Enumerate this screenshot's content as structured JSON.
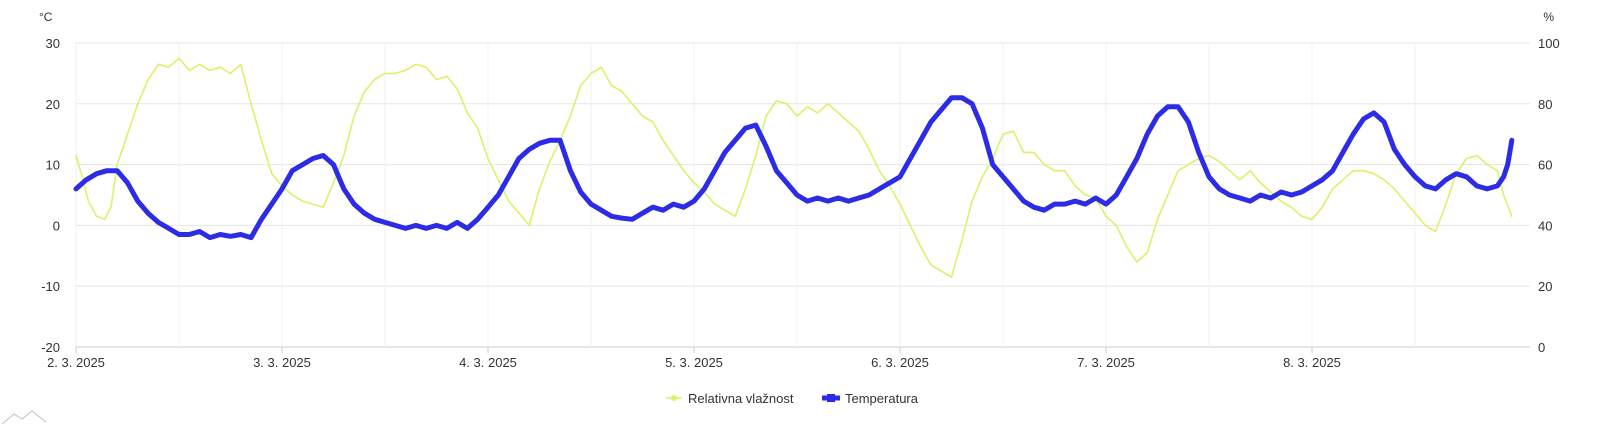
{
  "chart_data": {
    "type": "line",
    "title": "",
    "xlabel": "",
    "x_ticks": [
      "2. 3. 2025",
      "3. 3. 2025",
      "4. 3. 2025",
      "5. 3. 2025",
      "6. 3. 2025",
      "7. 3. 2025",
      "8. 3. 2025"
    ],
    "x_range_days": [
      0,
      6.97
    ],
    "y_left": {
      "unit": "°C",
      "ylim": [
        -20,
        30
      ],
      "ticks": [
        "30",
        "20",
        "10",
        "0",
        "-10",
        "-20"
      ]
    },
    "y_right": {
      "unit": "%",
      "ylim": [
        0,
        100
      ],
      "ticks": [
        "100",
        "80",
        "60",
        "40",
        "20",
        "0"
      ]
    },
    "grid": true,
    "legend_position": "bottom-center",
    "series": [
      {
        "name": "Relativna vlažnost",
        "axis": "right",
        "color": "#d4f56a",
        "points": [
          [
            0.0,
            63
          ],
          [
            0.03,
            56
          ],
          [
            0.06,
            48
          ],
          [
            0.1,
            43
          ],
          [
            0.14,
            42
          ],
          [
            0.17,
            46
          ],
          [
            0.2,
            60
          ],
          [
            0.25,
            70
          ],
          [
            0.3,
            80
          ],
          [
            0.35,
            88
          ],
          [
            0.4,
            93
          ],
          [
            0.45,
            92
          ],
          [
            0.5,
            95
          ],
          [
            0.55,
            91
          ],
          [
            0.6,
            93
          ],
          [
            0.65,
            91
          ],
          [
            0.7,
            92
          ],
          [
            0.75,
            90
          ],
          [
            0.8,
            93
          ],
          [
            0.85,
            80
          ],
          [
            0.9,
            68
          ],
          [
            0.95,
            57
          ],
          [
            1.0,
            53
          ],
          [
            1.05,
            50
          ],
          [
            1.1,
            48
          ],
          [
            1.15,
            47
          ],
          [
            1.2,
            46
          ],
          [
            1.25,
            54
          ],
          [
            1.3,
            63
          ],
          [
            1.35,
            76
          ],
          [
            1.4,
            84
          ],
          [
            1.45,
            88
          ],
          [
            1.5,
            90
          ],
          [
            1.55,
            90
          ],
          [
            1.6,
            91
          ],
          [
            1.65,
            93
          ],
          [
            1.7,
            92
          ],
          [
            1.75,
            88
          ],
          [
            1.8,
            89
          ],
          [
            1.85,
            85
          ],
          [
            1.9,
            77
          ],
          [
            1.95,
            72
          ],
          [
            2.0,
            62
          ],
          [
            2.05,
            55
          ],
          [
            2.1,
            48
          ],
          [
            2.15,
            44
          ],
          [
            2.2,
            40
          ],
          [
            2.25,
            52
          ],
          [
            2.3,
            61
          ],
          [
            2.35,
            68
          ],
          [
            2.4,
            76
          ],
          [
            2.45,
            86
          ],
          [
            2.5,
            90
          ],
          [
            2.55,
            92
          ],
          [
            2.6,
            86
          ],
          [
            2.65,
            84
          ],
          [
            2.7,
            80
          ],
          [
            2.75,
            76
          ],
          [
            2.8,
            74
          ],
          [
            2.85,
            68
          ],
          [
            2.9,
            63
          ],
          [
            2.95,
            58
          ],
          [
            3.0,
            54
          ],
          [
            3.05,
            51
          ],
          [
            3.1,
            47
          ],
          [
            3.15,
            45
          ],
          [
            3.2,
            43
          ],
          [
            3.25,
            52
          ],
          [
            3.3,
            63
          ],
          [
            3.35,
            76
          ],
          [
            3.4,
            81
          ],
          [
            3.45,
            80
          ],
          [
            3.5,
            76
          ],
          [
            3.55,
            79
          ],
          [
            3.6,
            77
          ],
          [
            3.65,
            80
          ],
          [
            3.7,
            77
          ],
          [
            3.75,
            74
          ],
          [
            3.8,
            71
          ],
          [
            3.85,
            65
          ],
          [
            3.9,
            58
          ],
          [
            3.95,
            53
          ],
          [
            4.0,
            47
          ],
          [
            4.05,
            40
          ],
          [
            4.1,
            33
          ],
          [
            4.15,
            27
          ],
          [
            4.2,
            25
          ],
          [
            4.25,
            23
          ],
          [
            4.3,
            35
          ],
          [
            4.35,
            48
          ],
          [
            4.4,
            56
          ],
          [
            4.45,
            62
          ],
          [
            4.5,
            70
          ],
          [
            4.55,
            71
          ],
          [
            4.6,
            64
          ],
          [
            4.65,
            64
          ],
          [
            4.7,
            60
          ],
          [
            4.75,
            58
          ],
          [
            4.8,
            58
          ],
          [
            4.85,
            53
          ],
          [
            4.9,
            50
          ],
          [
            4.95,
            49
          ],
          [
            5.0,
            43
          ],
          [
            5.05,
            40
          ],
          [
            5.1,
            33
          ],
          [
            5.15,
            28
          ],
          [
            5.2,
            31
          ],
          [
            5.25,
            42
          ],
          [
            5.3,
            50
          ],
          [
            5.35,
            58
          ],
          [
            5.4,
            60
          ],
          [
            5.45,
            62
          ],
          [
            5.5,
            63
          ],
          [
            5.55,
            61
          ],
          [
            5.6,
            58
          ],
          [
            5.65,
            55
          ],
          [
            5.7,
            58
          ],
          [
            5.75,
            54
          ],
          [
            5.8,
            51
          ],
          [
            5.85,
            48
          ],
          [
            5.9,
            46
          ],
          [
            5.95,
            43
          ],
          [
            6.0,
            42
          ],
          [
            6.05,
            46
          ],
          [
            6.1,
            52
          ],
          [
            6.15,
            55
          ],
          [
            6.2,
            58
          ],
          [
            6.25,
            58
          ],
          [
            6.3,
            57
          ],
          [
            6.35,
            55
          ],
          [
            6.4,
            52
          ],
          [
            6.45,
            48
          ],
          [
            6.5,
            44
          ],
          [
            6.55,
            40
          ],
          [
            6.6,
            38
          ],
          [
            6.65,
            47
          ],
          [
            6.7,
            57
          ],
          [
            6.75,
            62
          ],
          [
            6.8,
            63
          ],
          [
            6.85,
            60
          ],
          [
            6.9,
            58
          ],
          [
            6.93,
            50
          ],
          [
            6.97,
            43
          ]
        ]
      },
      {
        "name": "Temperatura",
        "axis": "left",
        "color": "#2c2ce6",
        "points": [
          [
            0.0,
            6
          ],
          [
            0.05,
            7.5
          ],
          [
            0.1,
            8.5
          ],
          [
            0.15,
            9.0
          ],
          [
            0.2,
            9.0
          ],
          [
            0.25,
            7
          ],
          [
            0.3,
            4
          ],
          [
            0.35,
            2
          ],
          [
            0.4,
            0.5
          ],
          [
            0.45,
            -0.5
          ],
          [
            0.5,
            -1.5
          ],
          [
            0.55,
            -1.5
          ],
          [
            0.6,
            -1.0
          ],
          [
            0.65,
            -2.0
          ],
          [
            0.7,
            -1.5
          ],
          [
            0.75,
            -1.8
          ],
          [
            0.8,
            -1.5
          ],
          [
            0.85,
            -2.0
          ],
          [
            0.9,
            1
          ],
          [
            0.95,
            3.5
          ],
          [
            1.0,
            6
          ],
          [
            1.05,
            9
          ],
          [
            1.1,
            10
          ],
          [
            1.15,
            11
          ],
          [
            1.2,
            11.5
          ],
          [
            1.25,
            10
          ],
          [
            1.3,
            6
          ],
          [
            1.35,
            3.5
          ],
          [
            1.4,
            2
          ],
          [
            1.45,
            1
          ],
          [
            1.5,
            0.5
          ],
          [
            1.55,
            0
          ],
          [
            1.6,
            -0.5
          ],
          [
            1.65,
            0
          ],
          [
            1.7,
            -0.5
          ],
          [
            1.75,
            0
          ],
          [
            1.8,
            -0.5
          ],
          [
            1.85,
            0.5
          ],
          [
            1.9,
            -0.5
          ],
          [
            1.95,
            1
          ],
          [
            2.0,
            3
          ],
          [
            2.05,
            5
          ],
          [
            2.1,
            8
          ],
          [
            2.15,
            11
          ],
          [
            2.2,
            12.5
          ],
          [
            2.25,
            13.5
          ],
          [
            2.3,
            14
          ],
          [
            2.35,
            14
          ],
          [
            2.4,
            9
          ],
          [
            2.45,
            5.5
          ],
          [
            2.5,
            3.5
          ],
          [
            2.55,
            2.5
          ],
          [
            2.6,
            1.5
          ],
          [
            2.65,
            1.2
          ],
          [
            2.7,
            1.0
          ],
          [
            2.75,
            2
          ],
          [
            2.8,
            3
          ],
          [
            2.85,
            2.5
          ],
          [
            2.9,
            3.5
          ],
          [
            2.95,
            3
          ],
          [
            3.0,
            4
          ],
          [
            3.05,
            6
          ],
          [
            3.1,
            9
          ],
          [
            3.15,
            12
          ],
          [
            3.2,
            14
          ],
          [
            3.25,
            16
          ],
          [
            3.3,
            16.5
          ],
          [
            3.35,
            13
          ],
          [
            3.4,
            9
          ],
          [
            3.45,
            7
          ],
          [
            3.5,
            5
          ],
          [
            3.55,
            4
          ],
          [
            3.6,
            4.5
          ],
          [
            3.65,
            4
          ],
          [
            3.7,
            4.5
          ],
          [
            3.75,
            4
          ],
          [
            3.8,
            4.5
          ],
          [
            3.85,
            5
          ],
          [
            3.9,
            6
          ],
          [
            3.95,
            7
          ],
          [
            4.0,
            8
          ],
          [
            4.05,
            11
          ],
          [
            4.1,
            14
          ],
          [
            4.15,
            17
          ],
          [
            4.2,
            19
          ],
          [
            4.25,
            21
          ],
          [
            4.3,
            21
          ],
          [
            4.35,
            20
          ],
          [
            4.4,
            16
          ],
          [
            4.45,
            10
          ],
          [
            4.5,
            8
          ],
          [
            4.55,
            6
          ],
          [
            4.6,
            4
          ],
          [
            4.65,
            3
          ],
          [
            4.7,
            2.5
          ],
          [
            4.75,
            3.5
          ],
          [
            4.8,
            3.5
          ],
          [
            4.85,
            4
          ],
          [
            4.9,
            3.5
          ],
          [
            4.95,
            4.5
          ],
          [
            5.0,
            3.5
          ],
          [
            5.05,
            5
          ],
          [
            5.1,
            8
          ],
          [
            5.15,
            11
          ],
          [
            5.2,
            15
          ],
          [
            5.25,
            18
          ],
          [
            5.3,
            19.5
          ],
          [
            5.35,
            19.5
          ],
          [
            5.4,
            17
          ],
          [
            5.45,
            12
          ],
          [
            5.5,
            8
          ],
          [
            5.55,
            6
          ],
          [
            5.6,
            5
          ],
          [
            5.65,
            4.5
          ],
          [
            5.7,
            4
          ],
          [
            5.75,
            5
          ],
          [
            5.8,
            4.5
          ],
          [
            5.85,
            5.5
          ],
          [
            5.9,
            5
          ],
          [
            5.95,
            5.5
          ],
          [
            6.0,
            6.5
          ],
          [
            6.05,
            7.5
          ],
          [
            6.1,
            9
          ],
          [
            6.15,
            12
          ],
          [
            6.2,
            15
          ],
          [
            6.25,
            17.5
          ],
          [
            6.3,
            18.5
          ],
          [
            6.35,
            17
          ],
          [
            6.4,
            12.5
          ],
          [
            6.45,
            10
          ],
          [
            6.5,
            8
          ],
          [
            6.55,
            6.5
          ],
          [
            6.6,
            6
          ],
          [
            6.65,
            7.5
          ],
          [
            6.7,
            8.5
          ],
          [
            6.75,
            8
          ],
          [
            6.8,
            6.5
          ],
          [
            6.85,
            6
          ],
          [
            6.9,
            6.5
          ],
          [
            6.93,
            8
          ],
          [
            6.95,
            10
          ],
          [
            6.97,
            14
          ]
        ]
      }
    ]
  }
}
